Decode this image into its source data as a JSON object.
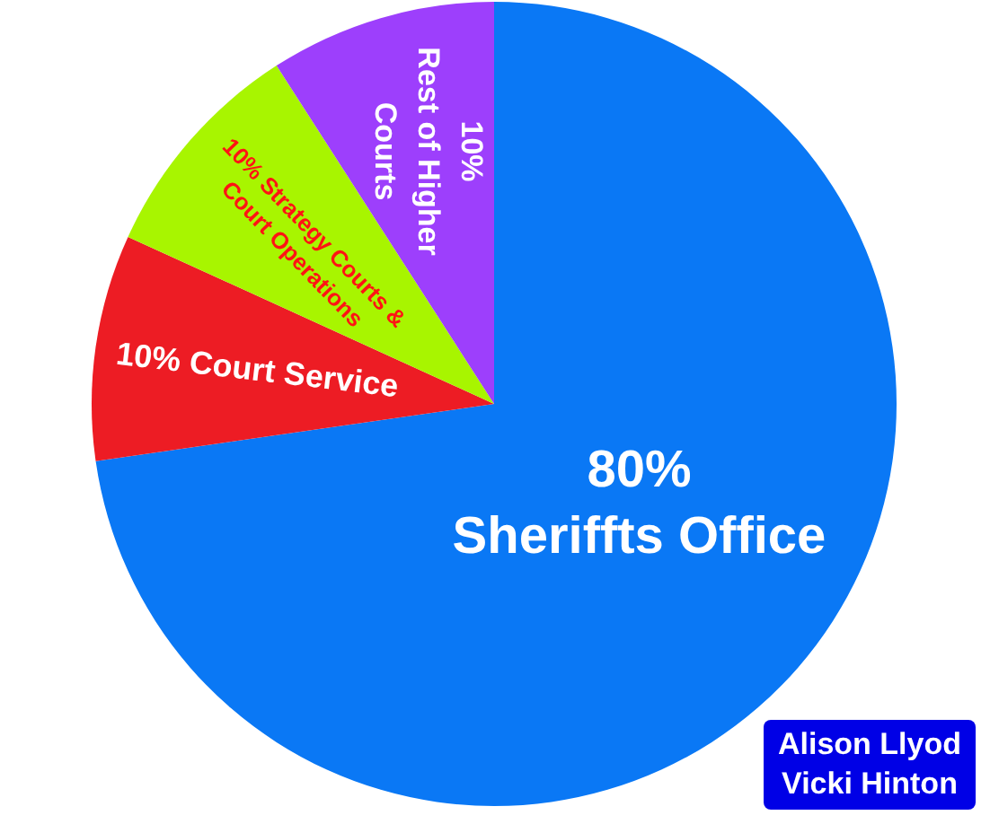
{
  "chart_data": {
    "type": "pie",
    "categories": [
      "Sheriffts Office",
      "Court Service",
      "Strategy Courts & Court Operations",
      "Rest of Higher Courts"
    ],
    "values": [
      80,
      10,
      10,
      10
    ],
    "value_labels": [
      "80%",
      "10%",
      "10%",
      "10%"
    ],
    "colors": [
      "#0a78f5",
      "#ed1c24",
      "#a8f500",
      "#9d3ffc"
    ],
    "legend": false,
    "annotations": [
      "Alison Llyod Vicki Hinton"
    ]
  }
}
